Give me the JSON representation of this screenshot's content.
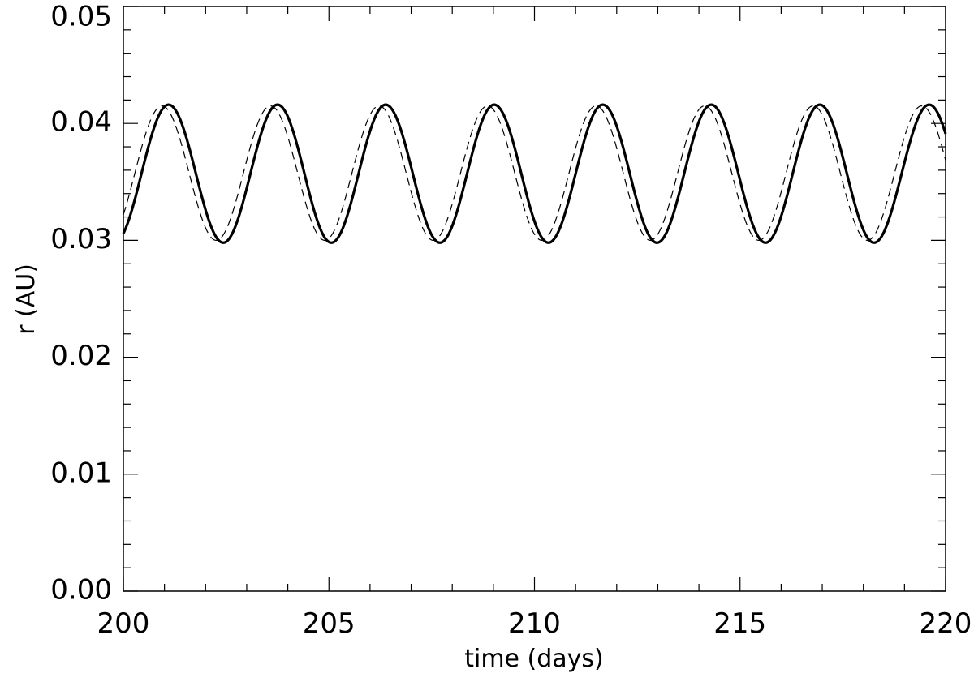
{
  "chart_data": {
    "type": "line",
    "title": "",
    "xlabel": "time (days)",
    "ylabel": "r (AU)",
    "xlim": [
      200,
      220
    ],
    "ylim": [
      0.0,
      0.05
    ],
    "x_ticks": [
      "200",
      "205",
      "210",
      "215",
      "220"
    ],
    "y_ticks": [
      "0.00",
      "0.01",
      "0.02",
      "0.03",
      "0.04",
      "0.05"
    ],
    "grid": false,
    "legend": "none",
    "series": [
      {
        "style": "solid",
        "color": "#000000",
        "period_days": 2.64,
        "maxima_days": [
          201.1,
          203.75,
          206.38,
          209.02,
          211.66,
          214.3,
          216.94,
          219.6
        ],
        "minima_days": [
          202.43,
          205.06,
          207.7,
          210.34,
          212.98,
          215.62,
          218.26
        ],
        "r_max": 0.0416,
        "r_min": 0.0298
      },
      {
        "style": "dashed",
        "color": "#000000",
        "period_days": 2.64,
        "maxima_days": [
          200.94,
          203.58,
          206.22,
          208.86,
          211.5,
          214.14,
          216.78,
          219.42
        ],
        "minima_days": [
          202.26,
          204.9,
          207.54,
          210.18,
          212.82,
          215.46,
          218.1
        ],
        "r_max": 0.0415,
        "r_min": 0.03
      }
    ]
  }
}
